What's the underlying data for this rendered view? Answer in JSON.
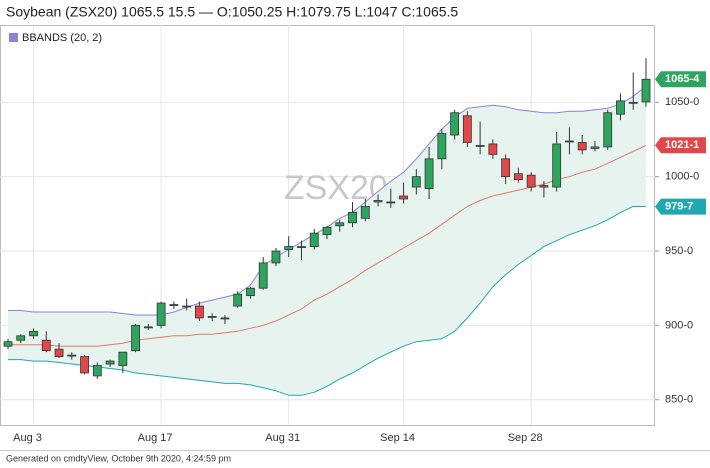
{
  "chart_data": {
    "type": "candlestick",
    "title": "Soybean (ZSX20) 1065.5 15.5 — O:1050.25 H:1079.75 L:1047 C:1065.5",
    "watermark": "ZSX20, 1D",
    "footer": "Generated on cmdtyView, October 9th 2020, 4:24:59 pm",
    "categories": [
      null,
      null,
      "Aug 3",
      null,
      null,
      null,
      null,
      null,
      null,
      null,
      null,
      null,
      "Aug 17",
      null,
      null,
      null,
      null,
      null,
      null,
      null,
      null,
      null,
      "Aug 31",
      null,
      null,
      null,
      null,
      null,
      null,
      null,
      null,
      "Sep 14",
      null,
      null,
      null,
      null,
      null,
      null,
      null,
      null,
      null,
      "Sep 28",
      null,
      null,
      null,
      null,
      null,
      null,
      null,
      null,
      null
    ],
    "open": [
      886,
      890,
      893,
      890,
      884,
      880,
      879,
      866,
      874,
      873,
      883,
      899,
      900,
      914,
      913,
      913,
      906,
      905,
      913,
      920,
      925,
      942,
      951,
      953,
      953,
      961,
      967,
      969,
      972,
      983,
      983,
      987,
      993,
      992,
      1012,
      1028,
      1041,
      1021,
      1022,
      1012,
      1002,
      1001,
      994,
      993,
      1024,
      1023,
      1019,
      1020,
      1042,
      1050,
      1050.25
    ],
    "high": [
      891,
      894,
      898,
      896,
      888,
      882,
      880,
      875,
      877,
      882,
      901,
      901,
      916,
      916,
      918,
      916,
      908,
      907,
      923,
      926,
      946,
      952,
      960,
      957,
      965,
      967,
      971,
      983,
      985,
      988,
      992,
      996,
      1005,
      1020,
      1032,
      1045,
      1044,
      1037,
      1025,
      1015,
      1006,
      1003,
      997,
      1030,
      1033,
      1028,
      1024,
      1045,
      1056,
      1070,
      1079.75
    ],
    "low": [
      884,
      888,
      891,
      882,
      878,
      877,
      867,
      864,
      872,
      868,
      882,
      897,
      898,
      911,
      910,
      903,
      903,
      901,
      912,
      918,
      924,
      940,
      946,
      944,
      951,
      958,
      963,
      966,
      970,
      980,
      979,
      982,
      988,
      985,
      1005,
      1025,
      1020,
      1015,
      1012,
      995,
      996,
      990,
      986,
      990,
      1015,
      1015,
      1017,
      1018,
      1038,
      1045,
      1047
    ],
    "close": [
      889,
      893,
      896,
      883,
      879,
      880,
      868,
      873,
      876,
      882,
      900,
      899,
      915,
      914,
      913,
      905,
      906,
      905,
      921,
      925,
      942,
      950,
      953,
      953,
      962,
      966,
      969,
      976,
      980,
      984,
      983,
      985,
      1000,
      1012,
      1029,
      1043,
      1023,
      1021,
      1015,
      1000,
      998,
      993,
      993,
      1022,
      1024,
      1018,
      1020,
      1043,
      1051,
      1050,
      1065.5
    ],
    "up_color": "#2ea55e",
    "down_color": "#e0484a",
    "bands": {
      "name": "BBANDS (20, 2)",
      "color": "#8c80d8",
      "middle_color": "#e07a6a",
      "lower_color": "#21a7b0",
      "fill": "#e6f3ef",
      "upper": [
        910,
        910,
        909,
        909,
        909,
        909,
        909,
        909,
        909,
        908,
        907,
        907,
        907,
        909,
        912,
        915,
        917,
        919,
        921,
        927,
        940,
        946,
        951,
        956,
        961,
        966,
        972,
        976,
        983,
        990,
        997,
        1003,
        1012,
        1022,
        1032,
        1040,
        1046,
        1047,
        1048,
        1047,
        1045,
        1044,
        1043,
        1043,
        1044,
        1044,
        1045,
        1046,
        1049,
        1054,
        1061
      ],
      "middle": [
        887,
        887,
        887,
        887,
        886,
        886,
        886,
        886,
        887,
        888,
        890,
        891,
        892,
        893,
        893,
        894,
        894,
        895,
        896,
        898,
        900,
        903,
        907,
        911,
        917,
        921,
        926,
        931,
        937,
        942,
        947,
        952,
        957,
        962,
        968,
        974,
        980,
        984,
        987,
        989,
        991,
        993,
        995,
        998,
        1000,
        1003,
        1005,
        1009,
        1013,
        1017,
        1021.125
      ],
      "lower": [
        877,
        877,
        876,
        876,
        875,
        874,
        873,
        872,
        871,
        870,
        868,
        867,
        866,
        865,
        864,
        863,
        862,
        861,
        861,
        860,
        858,
        856,
        853,
        853,
        855,
        859,
        864,
        868,
        873,
        878,
        882,
        886,
        889,
        890,
        891,
        896,
        905,
        915,
        926,
        934,
        941,
        947,
        953,
        957,
        961,
        964,
        967,
        971,
        976,
        980,
        979.875
      ]
    },
    "price_tags": [
      {
        "value": 1065.5,
        "label": "1065-4",
        "color": "#2ea55e"
      },
      {
        "value": 1021.125,
        "label": "1021-1",
        "color": "#e0484a"
      },
      {
        "value": 979.875,
        "label": "979-7",
        "color": "#21a7b0"
      }
    ],
    "ylim": [
      833,
      1102
    ],
    "yticks": [
      {
        "value": 850,
        "label": "850-0"
      },
      {
        "value": 900,
        "label": "900-0"
      },
      {
        "value": 950,
        "label": "950-0"
      },
      {
        "value": 1000,
        "label": "1000-0"
      },
      {
        "value": 1050,
        "label": "1050-0"
      }
    ],
    "grid": true
  }
}
